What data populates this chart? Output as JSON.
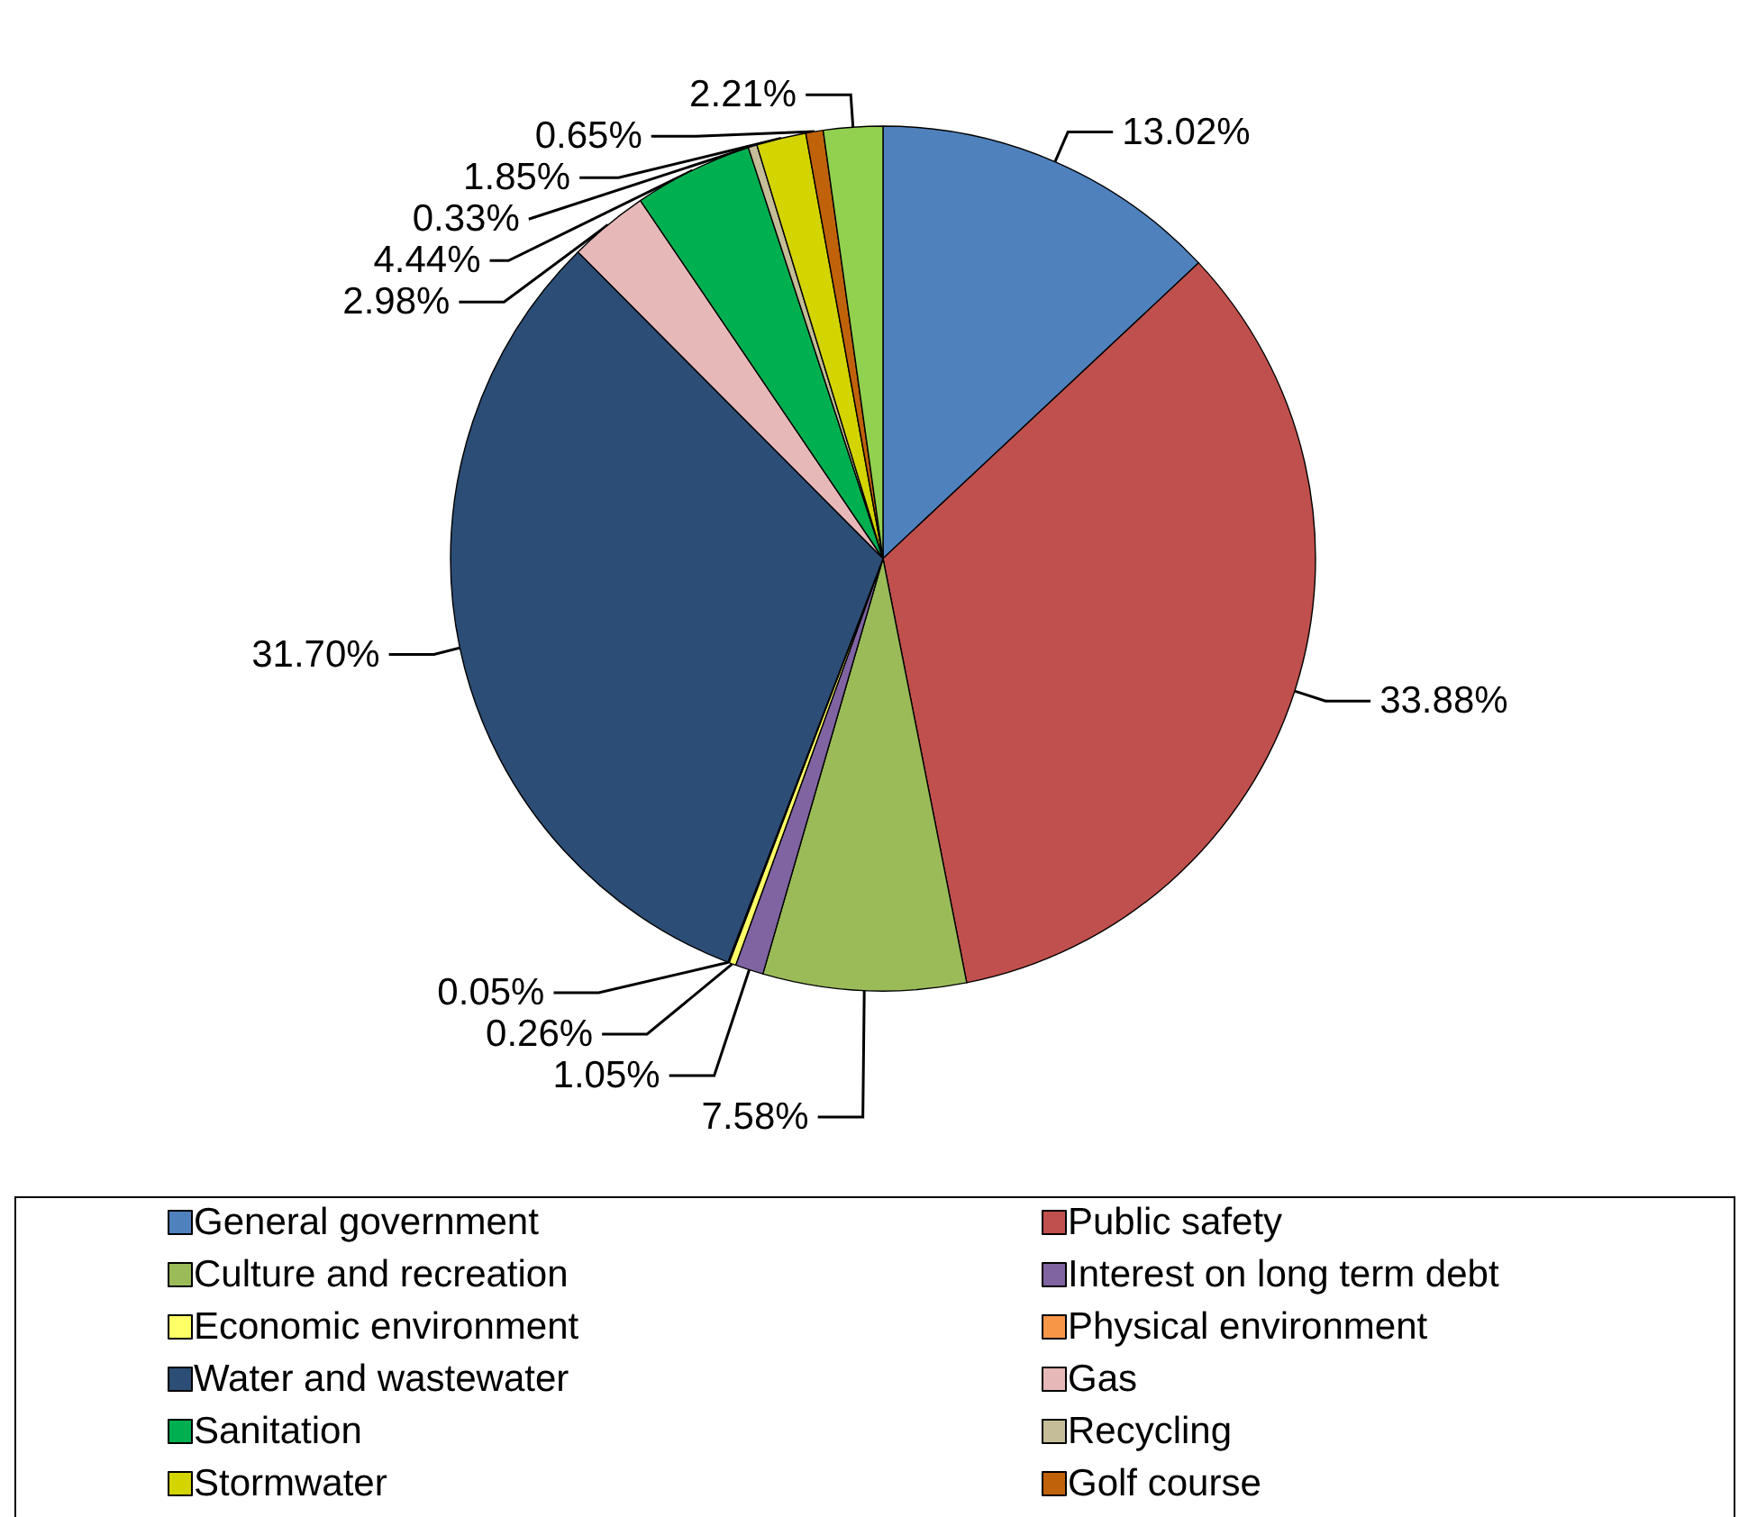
{
  "chart_data": {
    "type": "pie",
    "categories": [
      "General government",
      "Public safety",
      "Culture and recreation",
      "Interest on long term debt",
      "Economic environment",
      "Physical environment",
      "Water and wastewater",
      "Gas",
      "Sanitation",
      "Recycling",
      "Stormwater",
      "Golf course",
      null
    ],
    "values": [
      13.02,
      33.88,
      7.58,
      1.05,
      0.26,
      0.05,
      31.7,
      2.98,
      4.44,
      0.33,
      1.85,
      0.65,
      2.21
    ],
    "value_labels": [
      "13.02%",
      "33.88%",
      "7.58%",
      "1.05%",
      "0.26%",
      "0.05%",
      "31.70%",
      "2.98%",
      "4.44%",
      "0.33%",
      "1.85%",
      "0.65%",
      "2.21%"
    ],
    "colors": [
      "#4f81bd",
      "#c0504d",
      "#9bbb59",
      "#8064a2",
      "#ffff66",
      "#f79646",
      "#2c4d75",
      "#e6b9b8",
      "#00b050",
      "#c4bd97",
      "#d4d400",
      "#c0620a",
      "#92d050"
    ],
    "legend": "bottom"
  }
}
